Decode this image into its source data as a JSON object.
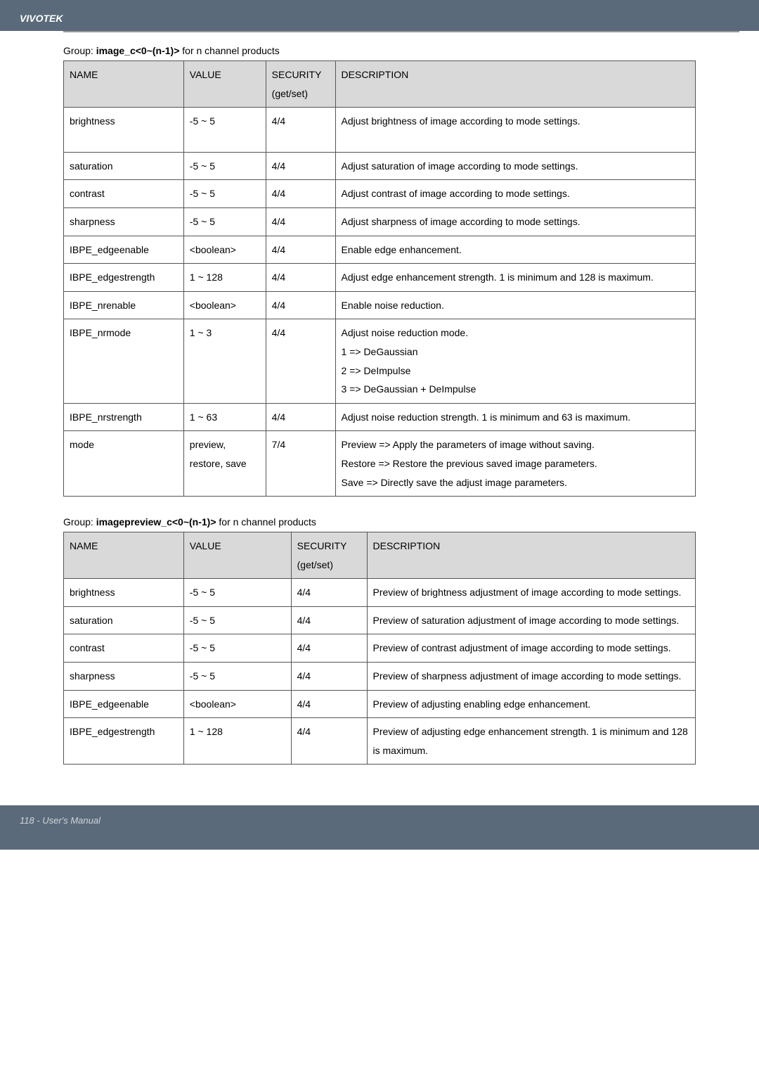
{
  "header": {
    "brand": "VIVOTEK"
  },
  "footer": {
    "text": "118 - User's Manual"
  },
  "table1": {
    "caption_prefix": "Group: ",
    "caption_group": "image_c<0~(n-1)>",
    "caption_suffix": " for n channel products",
    "head": {
      "name": "NAME",
      "value": "VALUE",
      "security": "SECURITY (get/set)",
      "description": "DESCRIPTION"
    },
    "rows": [
      {
        "name": "brightness",
        "value": "-5 ~ 5",
        "security": "4/4",
        "description": "Adjust brightness of image according to mode settings."
      },
      {
        "name": "saturation",
        "value": "-5 ~ 5",
        "security": "4/4",
        "description": "Adjust saturation of image according to mode settings."
      },
      {
        "name": "contrast",
        "value": "-5 ~ 5",
        "security": "4/4",
        "description": "Adjust contrast of image according to mode settings."
      },
      {
        "name": "sharpness",
        "value": "-5 ~ 5",
        "security": "4/4",
        "description": "Adjust sharpness of image according to mode settings."
      },
      {
        "name": "IBPE_edgeenable",
        "value": "<boolean>",
        "security": "4/4",
        "description": "Enable edge enhancement."
      },
      {
        "name": "IBPE_edgestrength",
        "value": "1 ~ 128",
        "security": "4/4",
        "description": "Adjust edge enhancement strength. 1 is minimum and 128 is maximum."
      },
      {
        "name": "IBPE_nrenable",
        "value": "<boolean>",
        "security": "4/4",
        "description": "Enable noise reduction."
      },
      {
        "name": "IBPE_nrmode",
        "value": "1 ~ 3",
        "security": "4/4",
        "description": "Adjust noise reduction mode.\n1 => DeGaussian\n2 => DeImpulse\n3 => DeGaussian + DeImpulse"
      },
      {
        "name": "IBPE_nrstrength",
        "value": "1 ~ 63",
        "security": "4/4",
        "description": "Adjust noise reduction strength. 1 is minimum and 63 is maximum."
      },
      {
        "name": "mode",
        "value": "preview, restore, save",
        "security": "7/4",
        "description": "Preview => Apply the parameters of image without saving.\nRestore => Restore the previous saved image parameters.\nSave => Directly save the adjust image parameters."
      }
    ]
  },
  "table2": {
    "caption_prefix": "Group: ",
    "caption_group": "imagepreview_c<0~(n-1)>",
    "caption_suffix": " for n channel products",
    "head": {
      "name": "NAME",
      "value": "VALUE",
      "security": "SECURITY (get/set)",
      "description": "DESCRIPTION"
    },
    "rows": [
      {
        "name": "brightness",
        "value": "-5 ~ 5",
        "security": "4/4",
        "description": "Preview of brightness adjustment of image according to mode settings."
      },
      {
        "name": "saturation",
        "value": "-5 ~ 5",
        "security": "4/4",
        "description": "Preview of saturation adjustment of image according to mode settings."
      },
      {
        "name": "contrast",
        "value": "-5 ~ 5",
        "security": "4/4",
        "description": "Preview of contrast adjustment of image according to mode settings."
      },
      {
        "name": "sharpness",
        "value": "-5 ~ 5",
        "security": "4/4",
        "description": "Preview of sharpness adjustment of image according to mode settings."
      },
      {
        "name": "IBPE_edgeenable",
        "value": "<boolean>",
        "security": "4/4",
        "description": "Preview of adjusting enabling edge enhancement."
      },
      {
        "name": "IBPE_edgestrength",
        "value": "1 ~ 128",
        "security": "4/4",
        "description": "Preview of adjusting edge enhancement strength. 1 is minimum and 128 is maximum."
      }
    ]
  }
}
